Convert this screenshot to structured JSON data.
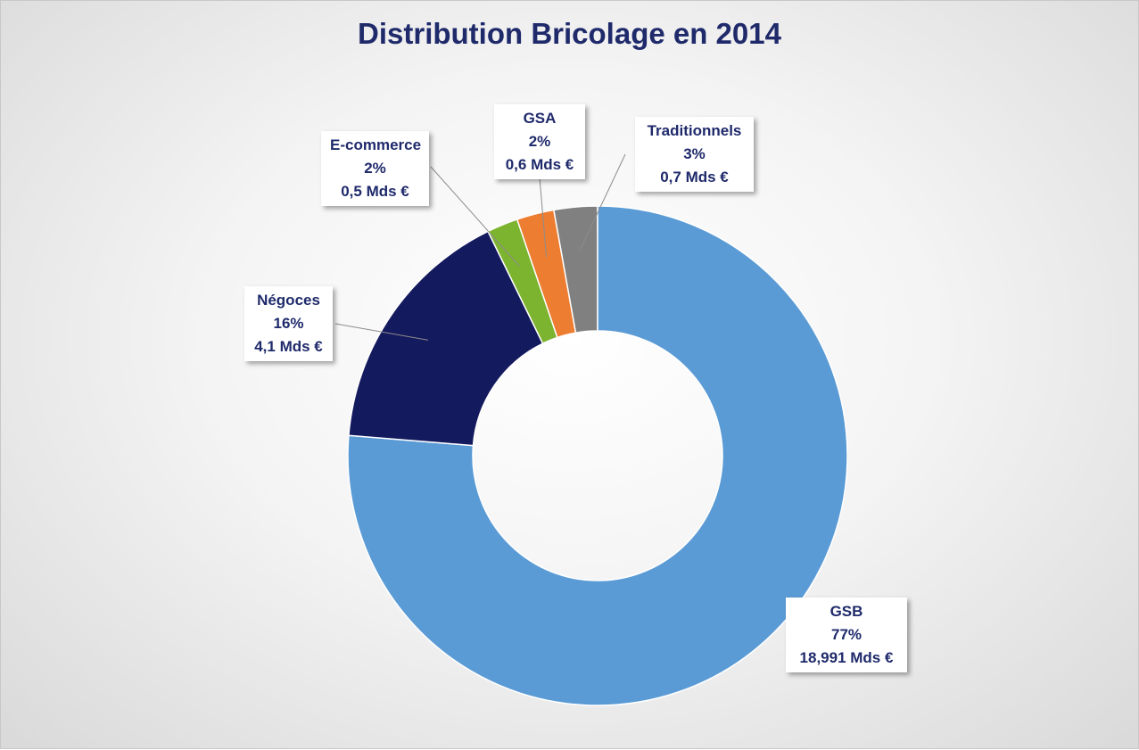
{
  "chart_data": {
    "type": "pie",
    "title": "Distribution Bricolage en 2014",
    "legend": "none",
    "slices": [
      {
        "category": "Traditionnels",
        "percent_label": "3%",
        "value_label": "0,7 Mds €",
        "value": 0.7,
        "color": "#808080"
      },
      {
        "category": "GSB",
        "percent_label": "77%",
        "value_label": "18,991 Mds €",
        "value": 18.991,
        "color": "#5b9bd5"
      },
      {
        "category": "Négoces",
        "percent_label": "16%",
        "value_label": "4,1 Mds €",
        "value": 4.1,
        "color": "#141a5e"
      },
      {
        "category": "E-commerce",
        "percent_label": "2%",
        "value_label": "0,5 Mds €",
        "value": 0.5,
        "color": "#7db42f"
      },
      {
        "category": "GSA",
        "percent_label": "2%",
        "value_label": "0,6 Mds €",
        "value": 0.6,
        "color": "#ed7d31"
      }
    ]
  }
}
